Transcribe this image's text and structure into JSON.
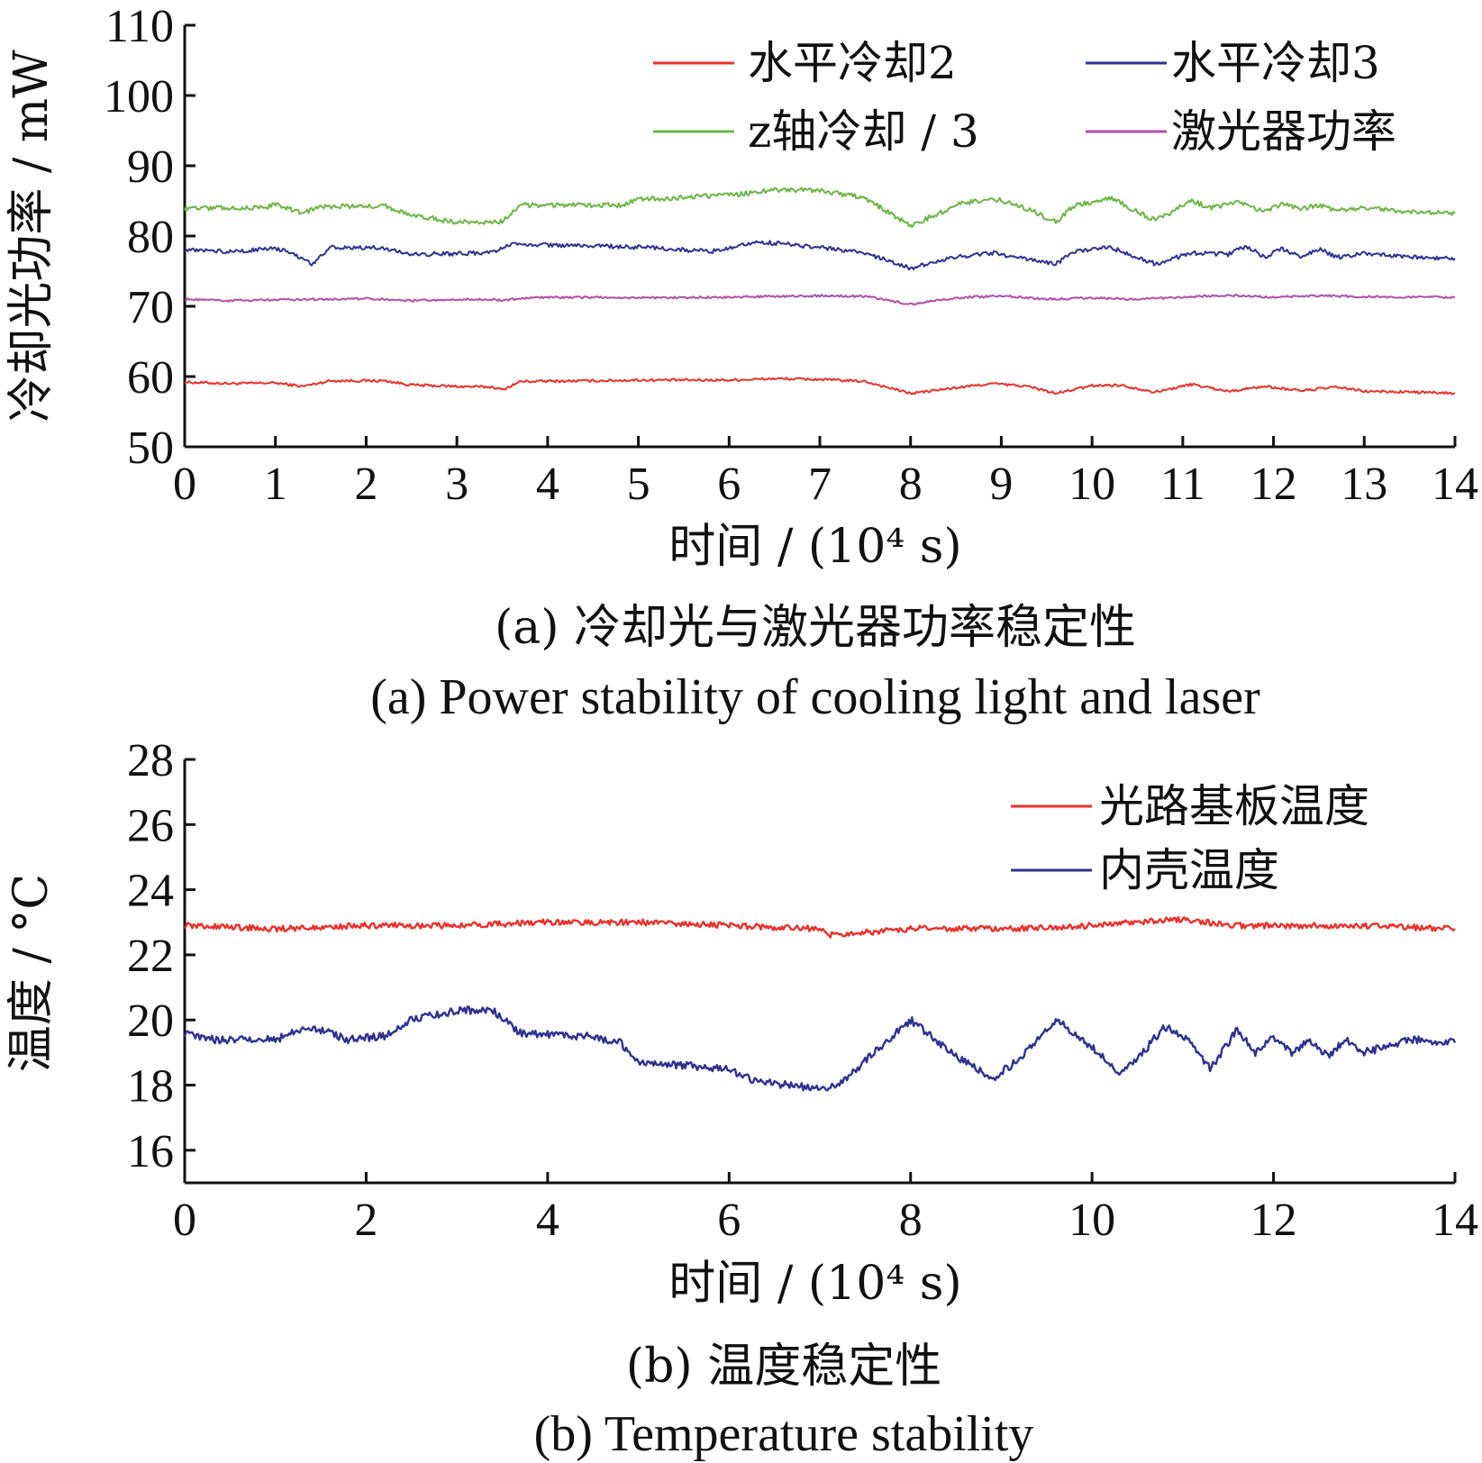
{
  "chart_data": [
    {
      "type": "line",
      "xlabel": "时间 / (10⁴ s)",
      "ylabel": "冷却光功率 / mW",
      "xlim": [
        0,
        14
      ],
      "ylim": [
        50,
        110
      ],
      "xticks": [
        0,
        1,
        2,
        3,
        4,
        5,
        6,
        7,
        8,
        9,
        10,
        11,
        12,
        13,
        14
      ],
      "yticks": [
        50,
        60,
        70,
        80,
        90,
        100,
        110
      ],
      "legend_position": "top-right",
      "grid": false,
      "caption_zh": "(a) 冷却光与激光器功率稳定性",
      "caption_en": "(a) Power stability of cooling light and laser",
      "series": [
        {
          "name": "水平冷却2",
          "color": "#e8312a",
          "x": [
            0,
            0.5,
            1,
            1.3,
            1.6,
            2.2,
            2.5,
            3.0,
            3.4,
            3.5,
            3.7,
            4.5,
            5.0,
            6.0,
            6.5,
            7.0,
            7.5,
            8.0,
            8.5,
            8.9,
            9.3,
            9.6,
            10.0,
            10.3,
            10.7,
            11.1,
            11.5,
            11.9,
            12.3,
            12.7,
            13.0,
            13.5,
            14.0
          ],
          "y": [
            59.2,
            59.0,
            59.1,
            58.6,
            59.4,
            59.4,
            58.8,
            58.6,
            58.5,
            58.1,
            59.3,
            59.4,
            59.5,
            59.5,
            59.7,
            59.6,
            59.3,
            57.6,
            58.4,
            59.0,
            58.6,
            57.6,
            58.7,
            58.8,
            57.8,
            58.9,
            57.9,
            58.6,
            58.0,
            58.5,
            57.9,
            57.8,
            57.6
          ]
        },
        {
          "name": "水平冷却3",
          "color": "#2f3190",
          "x": [
            0,
            0.5,
            1,
            1.2,
            1.4,
            1.6,
            2.2,
            2.5,
            3.0,
            3.4,
            3.6,
            4.5,
            5.0,
            5.8,
            6.3,
            7.0,
            7.5,
            8.0,
            8.5,
            8.9,
            9.3,
            9.6,
            9.8,
            10.2,
            10.7,
            11.1,
            11.5,
            11.7,
            11.9,
            12.1,
            12.3,
            12.5,
            12.7,
            13.0,
            13.5,
            14.0
          ],
          "y": [
            78.0,
            77.8,
            78.2,
            77.5,
            76.0,
            78.4,
            78.3,
            77.4,
            77.5,
            77.6,
            78.8,
            78.6,
            78.4,
            77.8,
            79.2,
            78.4,
            77.6,
            75.4,
            77.0,
            77.6,
            76.6,
            76.0,
            77.8,
            78.4,
            76.0,
            77.6,
            77.4,
            78.6,
            77.0,
            78.2,
            77.0,
            78.2,
            77.0,
            77.5,
            77.0,
            76.8
          ]
        },
        {
          "name": "z轴冷却 / 3",
          "color": "#6bb545",
          "x": [
            0,
            0.9,
            1.0,
            1.3,
            1.5,
            2.2,
            2.5,
            3.0,
            3.4,
            3.5,
            3.7,
            4.8,
            5.0,
            6.0,
            6.5,
            7.0,
            7.5,
            8.0,
            8.5,
            8.9,
            9.3,
            9.6,
            9.8,
            10.2,
            10.7,
            11.1,
            11.3,
            11.6,
            11.9,
            12.1,
            12.3,
            12.5,
            12.7,
            13.0,
            13.5,
            14.0
          ],
          "y": [
            84.0,
            84.0,
            84.6,
            83.2,
            84.2,
            84.3,
            82.9,
            82.0,
            82.0,
            82.0,
            84.4,
            84.4,
            85.2,
            85.8,
            86.6,
            86.5,
            85.4,
            81.4,
            84.4,
            85.4,
            83.8,
            82.0,
            84.3,
            85.4,
            82.2,
            85.0,
            84.0,
            84.8,
            83.4,
            84.6,
            83.8,
            84.4,
            83.6,
            84.0,
            83.4,
            83.2
          ]
        },
        {
          "name": "激光器功率",
          "color": "#b04fa8",
          "x": [
            0,
            0.5,
            1,
            1.5,
            2.0,
            2.5,
            3.0,
            3.5,
            4.0,
            5.0,
            6.0,
            7.0,
            7.5,
            8.0,
            8.5,
            9.0,
            9.5,
            10.0,
            10.5,
            11.0,
            11.5,
            12.0,
            12.5,
            13.0,
            13.5,
            14.0
          ],
          "y": [
            71.0,
            70.8,
            70.9,
            71.0,
            71.1,
            70.8,
            71.0,
            70.9,
            71.3,
            71.2,
            71.3,
            71.5,
            71.4,
            70.3,
            71.2,
            71.5,
            71.0,
            71.2,
            71.0,
            71.3,
            71.6,
            71.3,
            71.5,
            71.4,
            71.3,
            71.3
          ]
        }
      ]
    },
    {
      "type": "line",
      "xlabel": "时间 / (10⁴ s)",
      "ylabel": "温度 / °C",
      "xlim": [
        0,
        14
      ],
      "ylim": [
        15,
        28
      ],
      "xticks": [
        0,
        2,
        4,
        6,
        8,
        10,
        12,
        14
      ],
      "yticks": [
        16,
        18,
        20,
        22,
        24,
        26,
        28
      ],
      "legend_position": "top-right",
      "grid": false,
      "caption_zh": "(b) 温度稳定性",
      "caption_en": "(b) Temperature stability",
      "series": [
        {
          "name": "光路基板温度",
          "color": "#e8312a",
          "x": [
            0,
            1,
            2,
            3,
            4,
            5,
            6,
            7,
            7.1,
            8,
            9,
            10,
            11,
            11.5,
            12,
            12.5,
            13,
            14
          ],
          "y": [
            22.9,
            22.8,
            22.9,
            22.9,
            23.0,
            23.0,
            22.9,
            22.8,
            22.6,
            22.8,
            22.8,
            22.9,
            23.1,
            22.9,
            22.9,
            22.9,
            22.9,
            22.8
          ]
        },
        {
          "name": "内壳温度",
          "color": "#2f3190",
          "x": [
            0,
            0.3,
            1.0,
            1.4,
            1.8,
            2.2,
            2.5,
            3.0,
            3.4,
            3.7,
            4.5,
            4.8,
            5.0,
            5.5,
            6.0,
            6.3,
            7.0,
            7.2,
            7.6,
            8.0,
            8.5,
            8.9,
            9.2,
            9.6,
            9.9,
            10.3,
            10.5,
            10.8,
            11.1,
            11.3,
            11.6,
            11.8,
            12.0,
            12.2,
            12.4,
            12.6,
            12.8,
            13.0,
            13.5,
            14.0
          ],
          "y": [
            19.6,
            19.4,
            19.4,
            19.8,
            19.4,
            19.5,
            20.0,
            20.3,
            20.3,
            19.6,
            19.5,
            19.3,
            18.7,
            18.6,
            18.5,
            18.1,
            17.9,
            18.0,
            19.0,
            20.0,
            18.9,
            18.2,
            18.8,
            20.0,
            19.4,
            18.4,
            18.8,
            19.8,
            19.3,
            18.5,
            19.7,
            19.0,
            19.5,
            19.0,
            19.4,
            18.9,
            19.4,
            19.0,
            19.4,
            19.3
          ]
        }
      ]
    }
  ]
}
